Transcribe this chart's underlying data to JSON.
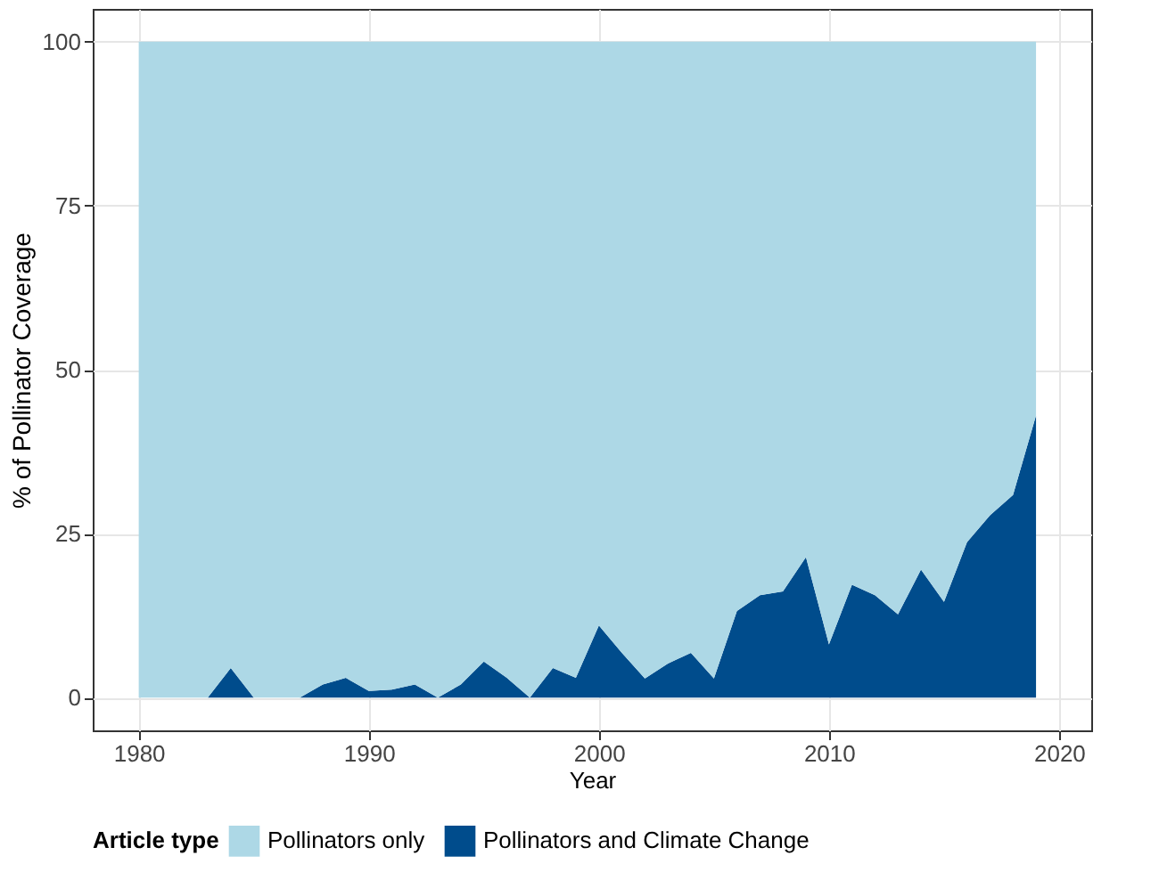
{
  "chart_data": {
    "type": "area",
    "xlabel": "Year",
    "ylabel": "% of Pollinator Coverage",
    "legend_title": "Article type",
    "x": [
      1980,
      1981,
      1982,
      1983,
      1984,
      1985,
      1986,
      1987,
      1988,
      1989,
      1990,
      1991,
      1992,
      1993,
      1994,
      1995,
      1996,
      1997,
      1998,
      1999,
      2000,
      2001,
      2002,
      2003,
      2004,
      2005,
      2006,
      2007,
      2008,
      2009,
      2010,
      2011,
      2012,
      2013,
      2014,
      2015,
      2016,
      2017,
      2018,
      2019
    ],
    "stacked": true,
    "series": [
      {
        "name": "Pollinators and Climate Change",
        "color": "#004c8c",
        "values": [
          0,
          0,
          0,
          0,
          4.5,
          0,
          0,
          0,
          2,
          3,
          1,
          1.2,
          2,
          0,
          2,
          5.5,
          3,
          0,
          4.5,
          3,
          11,
          6.8,
          2.9,
          5.2,
          6.8,
          2.9,
          13.2,
          15.6,
          16.2,
          21.4,
          8.1,
          17.2,
          15.6,
          12.7,
          19.5,
          14.6,
          23.7,
          27.8,
          30.9,
          43
        ]
      },
      {
        "name": "Pollinators only",
        "color": "#add8e6",
        "values": [
          100,
          100,
          100,
          100,
          95.5,
          100,
          100,
          100,
          98,
          97,
          99,
          98.8,
          98,
          100,
          98,
          94.5,
          97,
          100,
          95.5,
          97,
          89,
          93.2,
          97.1,
          94.8,
          93.2,
          97.1,
          86.8,
          84.4,
          83.8,
          78.6,
          91.9,
          82.8,
          84.4,
          87.3,
          80.5,
          85.4,
          76.3,
          72.2,
          69.1,
          57
        ]
      }
    ],
    "xlim": [
      1978,
      2021.4
    ],
    "xticks": [
      1980,
      1990,
      2000,
      2010,
      2020
    ],
    "ylim": [
      -5,
      105
    ],
    "yticks": [
      0,
      25,
      50,
      75,
      100
    ],
    "grid": true,
    "legend": "bottom"
  }
}
